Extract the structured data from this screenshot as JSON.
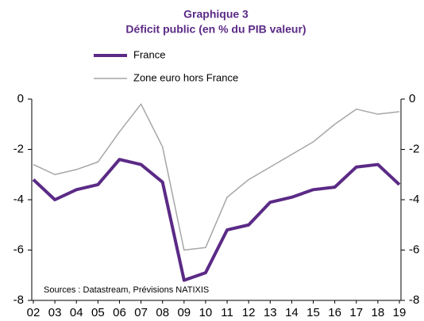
{
  "chart_data": {
    "type": "line",
    "title": "Graphique 3",
    "subtitle": "Déficit public (en % du PIB valeur)",
    "annotation": "Sources : Datastream, Prévisions NATIXIS",
    "categories": [
      "02",
      "03",
      "04",
      "05",
      "06",
      "07",
      "08",
      "09",
      "10",
      "11",
      "12",
      "13",
      "14",
      "15",
      "16",
      "17",
      "18",
      "19"
    ],
    "series": [
      {
        "name": "France",
        "color": "#5b2a86",
        "width": 4,
        "values": [
          -3.2,
          -4.0,
          -3.6,
          -3.4,
          -2.4,
          -2.6,
          -3.3,
          -7.2,
          -6.9,
          -5.2,
          -5.0,
          -4.1,
          -3.9,
          -3.6,
          -3.5,
          -2.7,
          -2.6,
          -3.4
        ]
      },
      {
        "name": "Zone euro hors France",
        "color": "#a6a6a6",
        "width": 1.5,
        "values": [
          -2.6,
          -3.0,
          -2.8,
          -2.5,
          -1.3,
          -0.2,
          -1.9,
          -6.0,
          -5.9,
          -3.9,
          -3.2,
          -2.7,
          -2.2,
          -1.7,
          -1.0,
          -0.4,
          -0.6,
          -0.5
        ]
      }
    ],
    "ylim": [
      -8,
      0
    ],
    "yticks": [
      0,
      -2,
      -4,
      -6,
      -8
    ],
    "y2lim": [
      -8,
      0
    ],
    "y2ticks": [
      0,
      -2,
      -4,
      -6,
      -8
    ],
    "grid": false
  }
}
